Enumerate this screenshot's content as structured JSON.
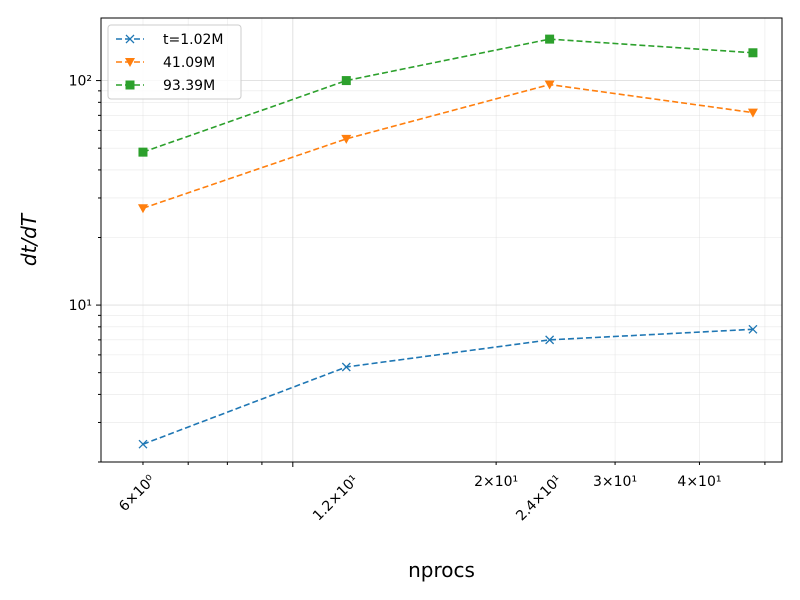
{
  "chart_data": {
    "type": "line",
    "xlabel": "nprocs",
    "ylabel": "dt/dT",
    "x_scale": "log",
    "y_scale": "log",
    "xlim": [
      5.2,
      53
    ],
    "ylim": [
      2.0,
      190
    ],
    "grid": true,
    "legend_position": "top-left",
    "x": [
      6,
      12,
      24,
      48
    ],
    "x_ticks": [
      {
        "value": 6,
        "label": "6×10⁰",
        "rotated": true
      },
      {
        "value": 12,
        "label": "1.2×10¹",
        "rotated": true
      },
      {
        "value": 20,
        "label": "2×10¹",
        "rotated": false
      },
      {
        "value": 24,
        "label": "2.4×10¹",
        "rotated": true
      },
      {
        "value": 30,
        "label": "3×10¹",
        "rotated": false
      },
      {
        "value": 40,
        "label": "4×10¹",
        "rotated": false
      }
    ],
    "y_ticks": [
      {
        "value": 10,
        "label": "10¹"
      },
      {
        "value": 100,
        "label": "10²"
      }
    ],
    "series": [
      {
        "name": "t=1.02M",
        "values": [
          2.4,
          5.3,
          7.0,
          7.8
        ],
        "color": "#1f77b4",
        "marker": "x"
      },
      {
        "name": "41.09M",
        "values": [
          27,
          55,
          96,
          72
        ],
        "color": "#ff7f0e",
        "marker": "triangle-down"
      },
      {
        "name": "93.39M",
        "values": [
          48,
          100,
          153,
          133
        ],
        "color": "#2ca02c",
        "marker": "square"
      }
    ]
  }
}
